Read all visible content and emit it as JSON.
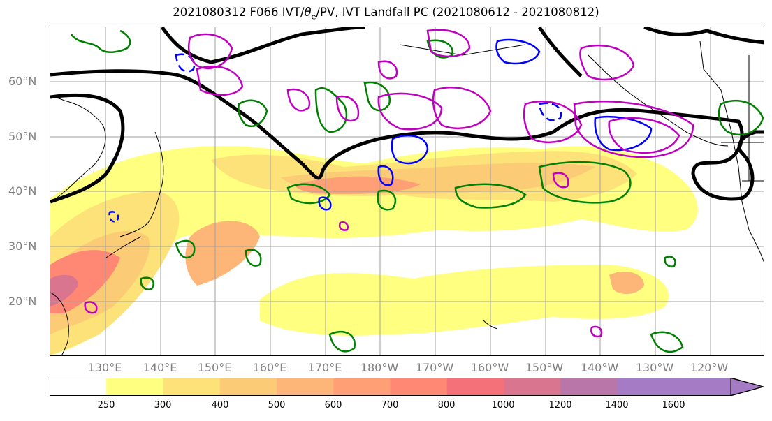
{
  "title": "2021080312 F066 IVT/θe/PV, IVT Landfall PC (2021080612 - 2021080812)",
  "title_parts": {
    "before": "2021080312 F066 IVT/",
    "theta": "θ",
    "sub": "e",
    "after": "/PV, IVT Landfall PC (2021080612 - 2021080812)"
  },
  "lat_labels": [
    "60°N",
    "50°N",
    "40°N",
    "30°N",
    "20°N"
  ],
  "lon_labels": [
    "130°E",
    "140°E",
    "150°E",
    "160°E",
    "170°E",
    "180°W",
    "170°W",
    "160°W",
    "150°W",
    "140°W",
    "130°W",
    "120°W"
  ],
  "colorbar": {
    "ticks": [
      "250",
      "300",
      "400",
      "500",
      "600",
      "700",
      "800",
      "1000",
      "1200",
      "1400",
      "1600"
    ],
    "colors": [
      "#ffffff",
      "#ffff80",
      "#fde279",
      "#fccb76",
      "#fdb677",
      "#fe9f76",
      "#fe8874",
      "#f4717a",
      "#da7590",
      "#b976a9",
      "#a67bc5"
    ]
  },
  "colors": {
    "ivt_fill": [
      "#ffff80",
      "#fde279",
      "#fccb76",
      "#fdb677",
      "#fe9f76",
      "#fe8874",
      "#f4717a",
      "#da7590",
      "#b976a9"
    ],
    "theta_e_contour": "#008000",
    "pv_contour": "#0000ff",
    "landfall_pc": "#c000c0",
    "geopotential": "#000000",
    "gridline": "#a0a0a0"
  }
}
